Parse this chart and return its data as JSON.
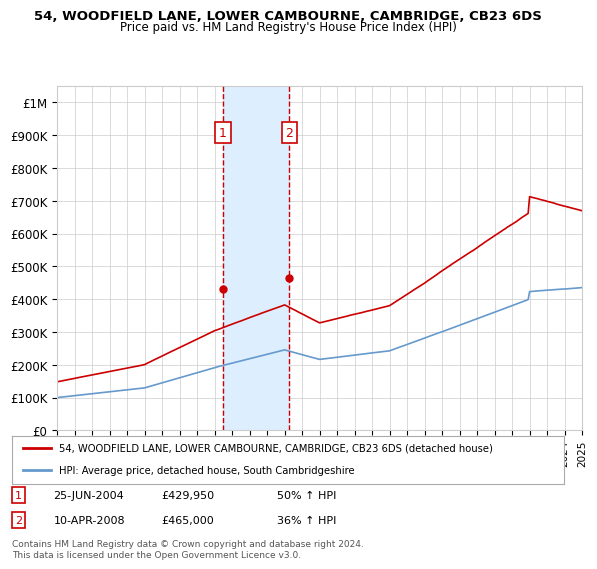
{
  "title1": "54, WOODFIELD LANE, LOWER CAMBOURNE, CAMBRIDGE, CB23 6DS",
  "title2": "Price paid vs. HM Land Registry's House Price Index (HPI)",
  "legend_line1": "54, WOODFIELD LANE, LOWER CAMBOURNE, CAMBRIDGE, CB23 6DS (detached house)",
  "legend_line2": "HPI: Average price, detached house, South Cambridgeshire",
  "annotation1": {
    "num": "1",
    "date": "25-JUN-2004",
    "price": "£429,950",
    "pct": "50% ↑ HPI"
  },
  "annotation2": {
    "num": "2",
    "date": "10-APR-2008",
    "price": "£465,000",
    "pct": "36% ↑ HPI"
  },
  "footer": "Contains HM Land Registry data © Crown copyright and database right 2024.\nThis data is licensed under the Open Government Licence v3.0.",
  "hpi_color": "#6699cc",
  "price_color": "#cc0000",
  "annotation_color": "#cc0000",
  "highlight_color": "#ddeeff",
  "ylim": [
    0,
    1050000
  ],
  "yticks": [
    0,
    100000,
    200000,
    300000,
    400000,
    500000,
    600000,
    700000,
    800000,
    900000,
    1000000
  ],
  "ytick_labels": [
    "£0",
    "£100K",
    "£200K",
    "£300K",
    "£400K",
    "£500K",
    "£600K",
    "£700K",
    "£800K",
    "£900K",
    "£1M"
  ],
  "sale1_x": 2004.48,
  "sale1_y": 429950,
  "sale2_x": 2008.27,
  "sale2_y": 465000,
  "xmin": 1995,
  "xmax": 2025
}
